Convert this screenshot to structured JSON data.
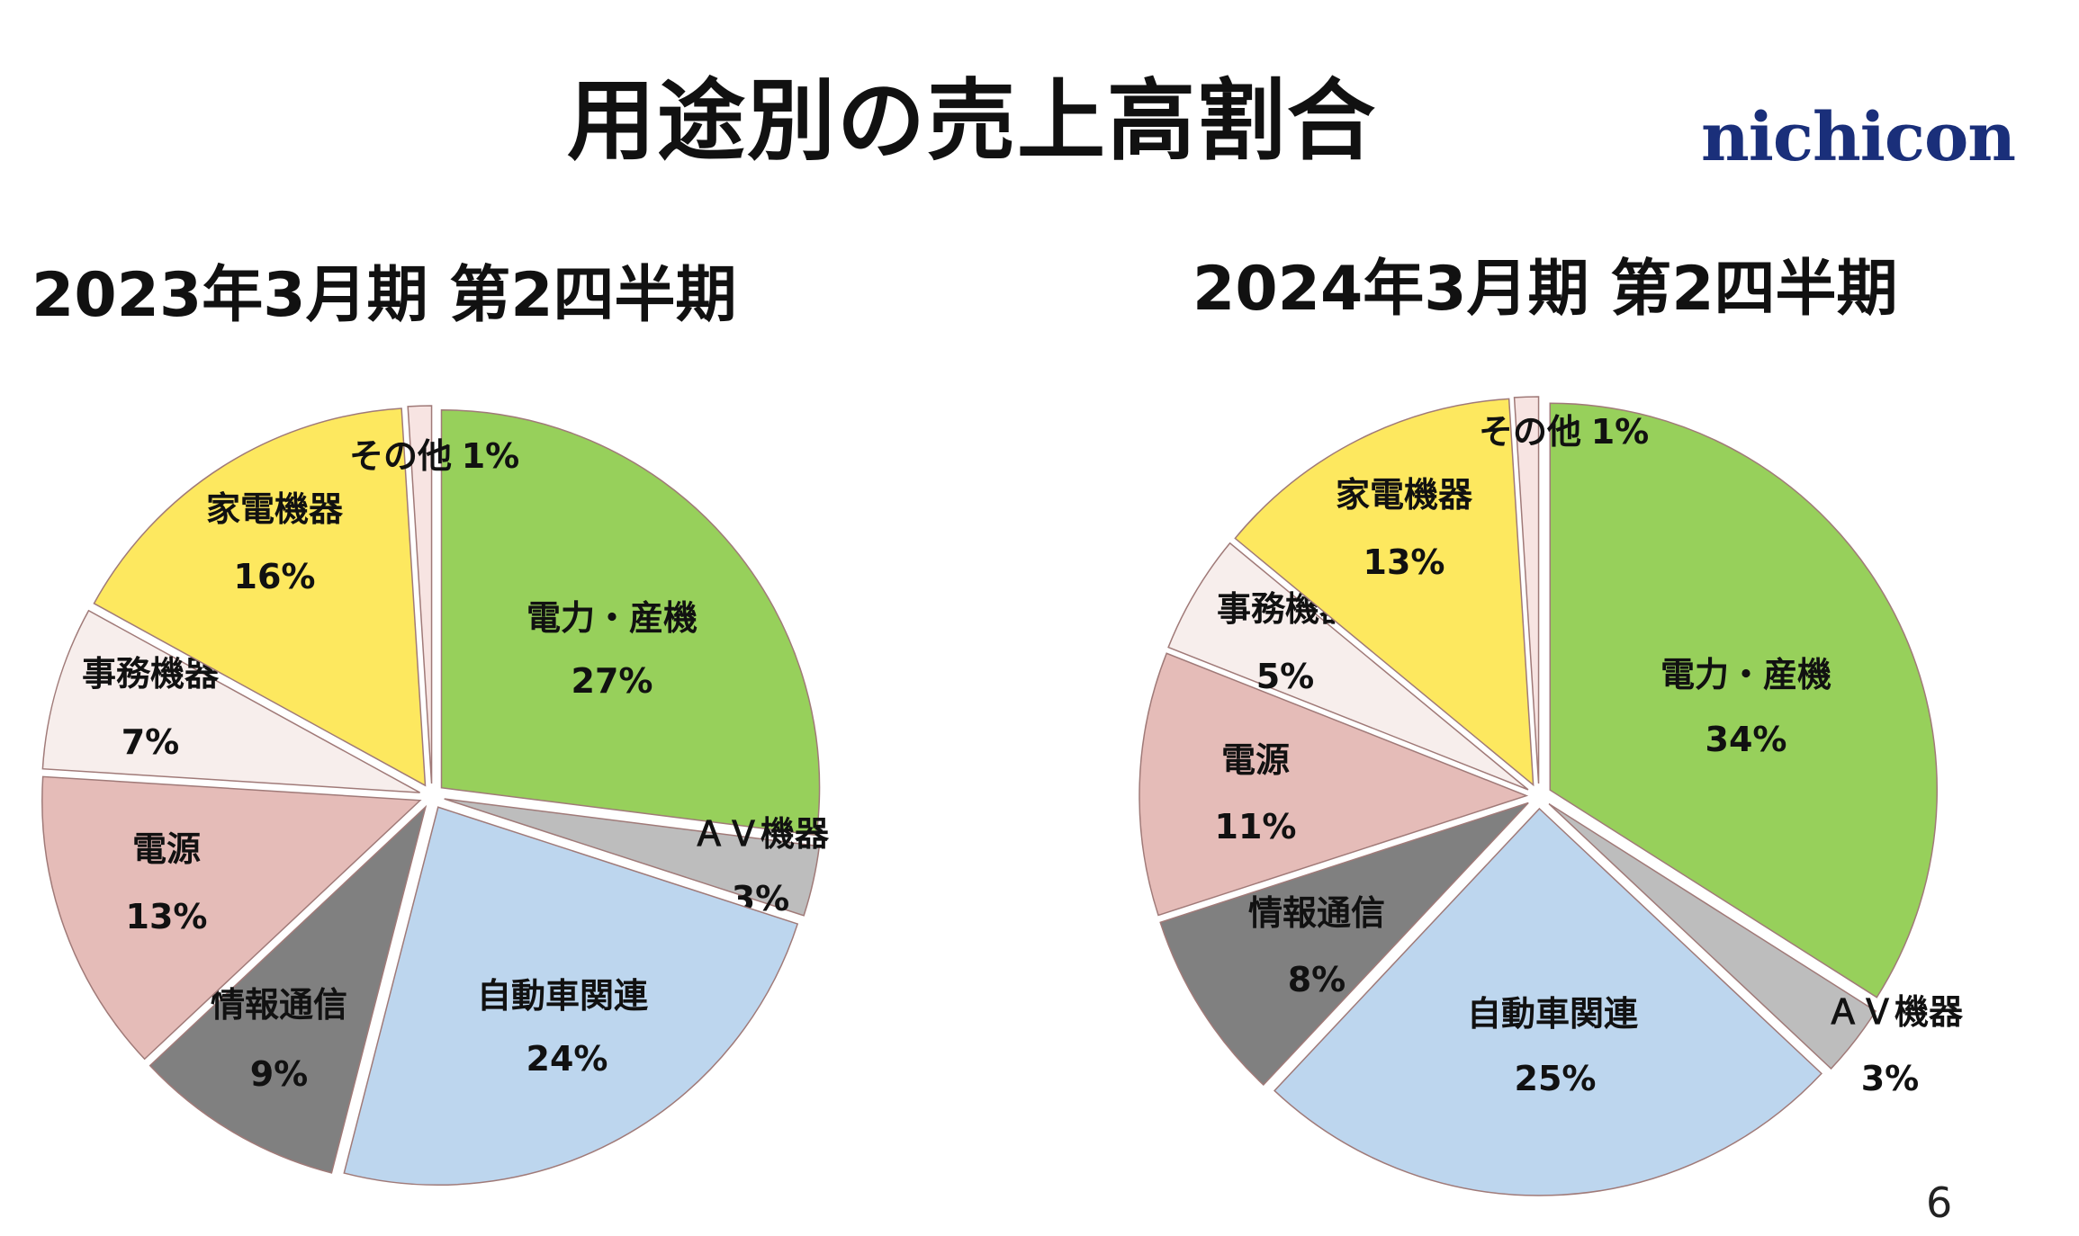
{
  "title": "用途別の売上高割合",
  "logo_text": "nichicon",
  "page_number": "6",
  "chart_data": [
    {
      "type": "pie",
      "title": "2023年3月期 第2四半期",
      "slices": [
        {
          "label": "電力・産機",
          "value": 27,
          "value_label": "27%",
          "color": "#97d05b"
        },
        {
          "label": "ＡＶ機器",
          "value": 3,
          "value_label": "3%",
          "color": "#bdbdbd"
        },
        {
          "label": "自動車関連",
          "value": 24,
          "value_label": "24%",
          "color": "#bdd6ee"
        },
        {
          "label": "情報通信",
          "value": 9,
          "value_label": "9%",
          "color": "#808080"
        },
        {
          "label": "電源",
          "value": 13,
          "value_label": "13%",
          "color": "#e5bcb8"
        },
        {
          "label": "事務機器",
          "value": 7,
          "value_label": "7%",
          "color": "#f7eeec"
        },
        {
          "label": "家電機器",
          "value": 16,
          "value_label": "16%",
          "color": "#fde85f"
        },
        {
          "label": "その他",
          "value": 1,
          "value_label": "1%",
          "color": "#f7e4e2"
        }
      ]
    },
    {
      "type": "pie",
      "title": "2024年3月期 第2四半期",
      "slices": [
        {
          "label": "電力・産機",
          "value": 34,
          "value_label": "34%",
          "color": "#97d05b"
        },
        {
          "label": "ＡＶ機器",
          "value": 3,
          "value_label": "3%",
          "color": "#bdbdbd"
        },
        {
          "label": "自動車関連",
          "value": 25,
          "value_label": "25%",
          "color": "#bdd6ee"
        },
        {
          "label": "情報通信",
          "value": 8,
          "value_label": "8%",
          "color": "#808080"
        },
        {
          "label": "電源",
          "value": 11,
          "value_label": "11%",
          "color": "#e5bcb8"
        },
        {
          "label": "事務機器",
          "value": 5,
          "value_label": "5%",
          "color": "#f7eeec"
        },
        {
          "label": "家電機器",
          "value": 13,
          "value_label": "13%",
          "color": "#fde85f"
        },
        {
          "label": "その他",
          "value": 1,
          "value_label": "1%",
          "color": "#f7e4e2"
        }
      ]
    }
  ]
}
